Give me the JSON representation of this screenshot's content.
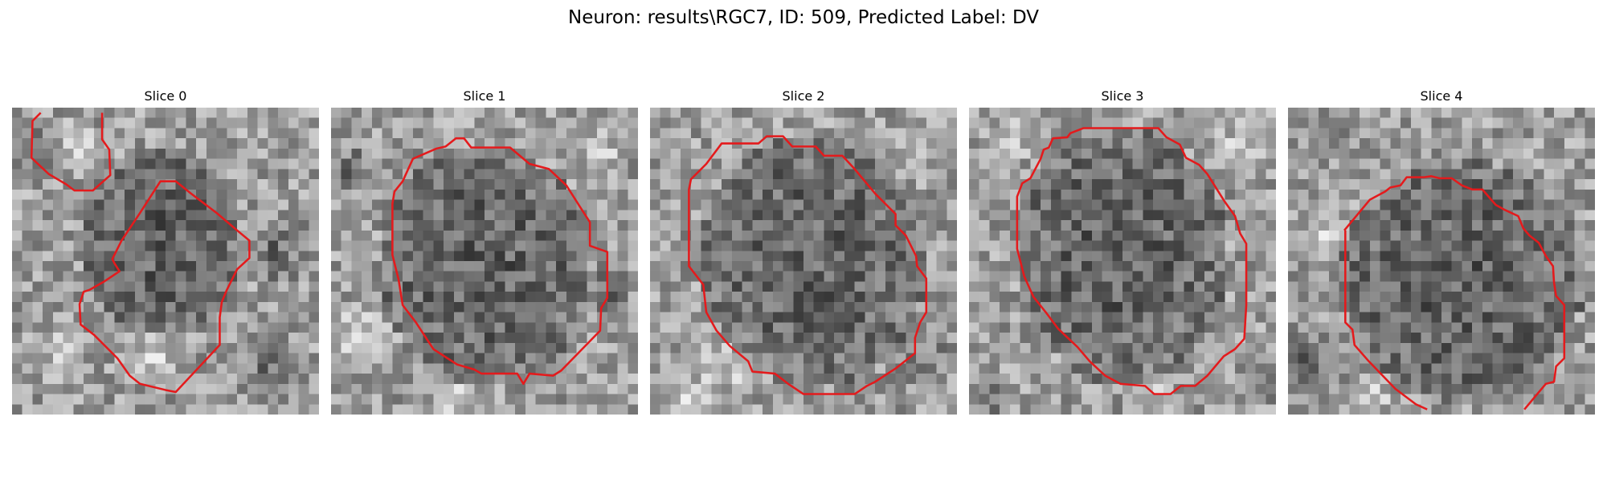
{
  "figure": {
    "title": "Neuron: results\\RGC7, ID: 509, Predicted Label: DV"
  },
  "panels": [
    {
      "title": "Slice 0"
    },
    {
      "title": "Slice 1"
    },
    {
      "title": "Slice 2"
    },
    {
      "title": "Slice 3"
    },
    {
      "title": "Slice 4"
    }
  ],
  "colors": {
    "contour": "#e41a1c",
    "background": "#ffffff"
  }
}
